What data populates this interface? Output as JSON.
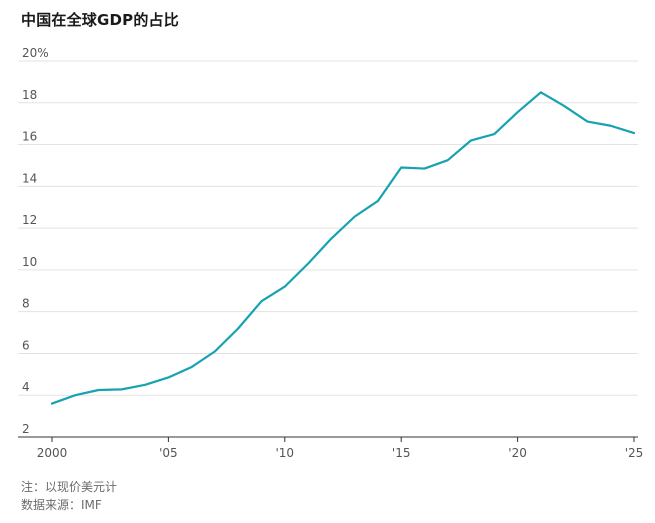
{
  "chart_data": {
    "type": "line",
    "title": "中国在全球GDP的占比",
    "xlabel": "",
    "ylabel": "",
    "y_unit": "%",
    "xlim": [
      2000,
      2025
    ],
    "ylim": [
      2,
      20
    ],
    "grid": true,
    "yticks": [
      {
        "value": 20,
        "label": "20"
      },
      {
        "value": 18,
        "label": "18"
      },
      {
        "value": 16,
        "label": "16"
      },
      {
        "value": 14,
        "label": "14"
      },
      {
        "value": 12,
        "label": "12"
      },
      {
        "value": 10,
        "label": "10"
      },
      {
        "value": 8,
        "label": "8"
      },
      {
        "value": 6,
        "label": "6"
      },
      {
        "value": 4,
        "label": "4"
      },
      {
        "value": 2,
        "label": "2"
      }
    ],
    "xticks": [
      {
        "value": 2000,
        "label": "2000"
      },
      {
        "value": 2005,
        "label": "'05"
      },
      {
        "value": 2010,
        "label": "'10"
      },
      {
        "value": 2015,
        "label": "'15"
      },
      {
        "value": 2020,
        "label": "'20"
      },
      {
        "value": 2025,
        "label": "'25"
      }
    ],
    "series": [
      {
        "color": "#17a2b2",
        "x": [
          2000,
          2001,
          2002,
          2003,
          2004,
          2005,
          2006,
          2007,
          2008,
          2009,
          2010,
          2011,
          2012,
          2013,
          2014,
          2015,
          2016,
          2017,
          2018,
          2019,
          2020,
          2021,
          2022,
          2023,
          2024,
          2025
        ],
        "y": [
          3.6,
          4.0,
          4.25,
          4.28,
          4.5,
          4.85,
          5.35,
          6.1,
          7.2,
          8.5,
          9.2,
          10.3,
          11.5,
          12.55,
          13.3,
          14.9,
          14.85,
          15.25,
          16.2,
          16.5,
          17.55,
          18.5,
          17.85,
          17.1,
          16.9,
          16.55
        ]
      }
    ]
  },
  "notes": {
    "note1": "注：以现价美元计",
    "note2": "数据来源：IMF"
  }
}
